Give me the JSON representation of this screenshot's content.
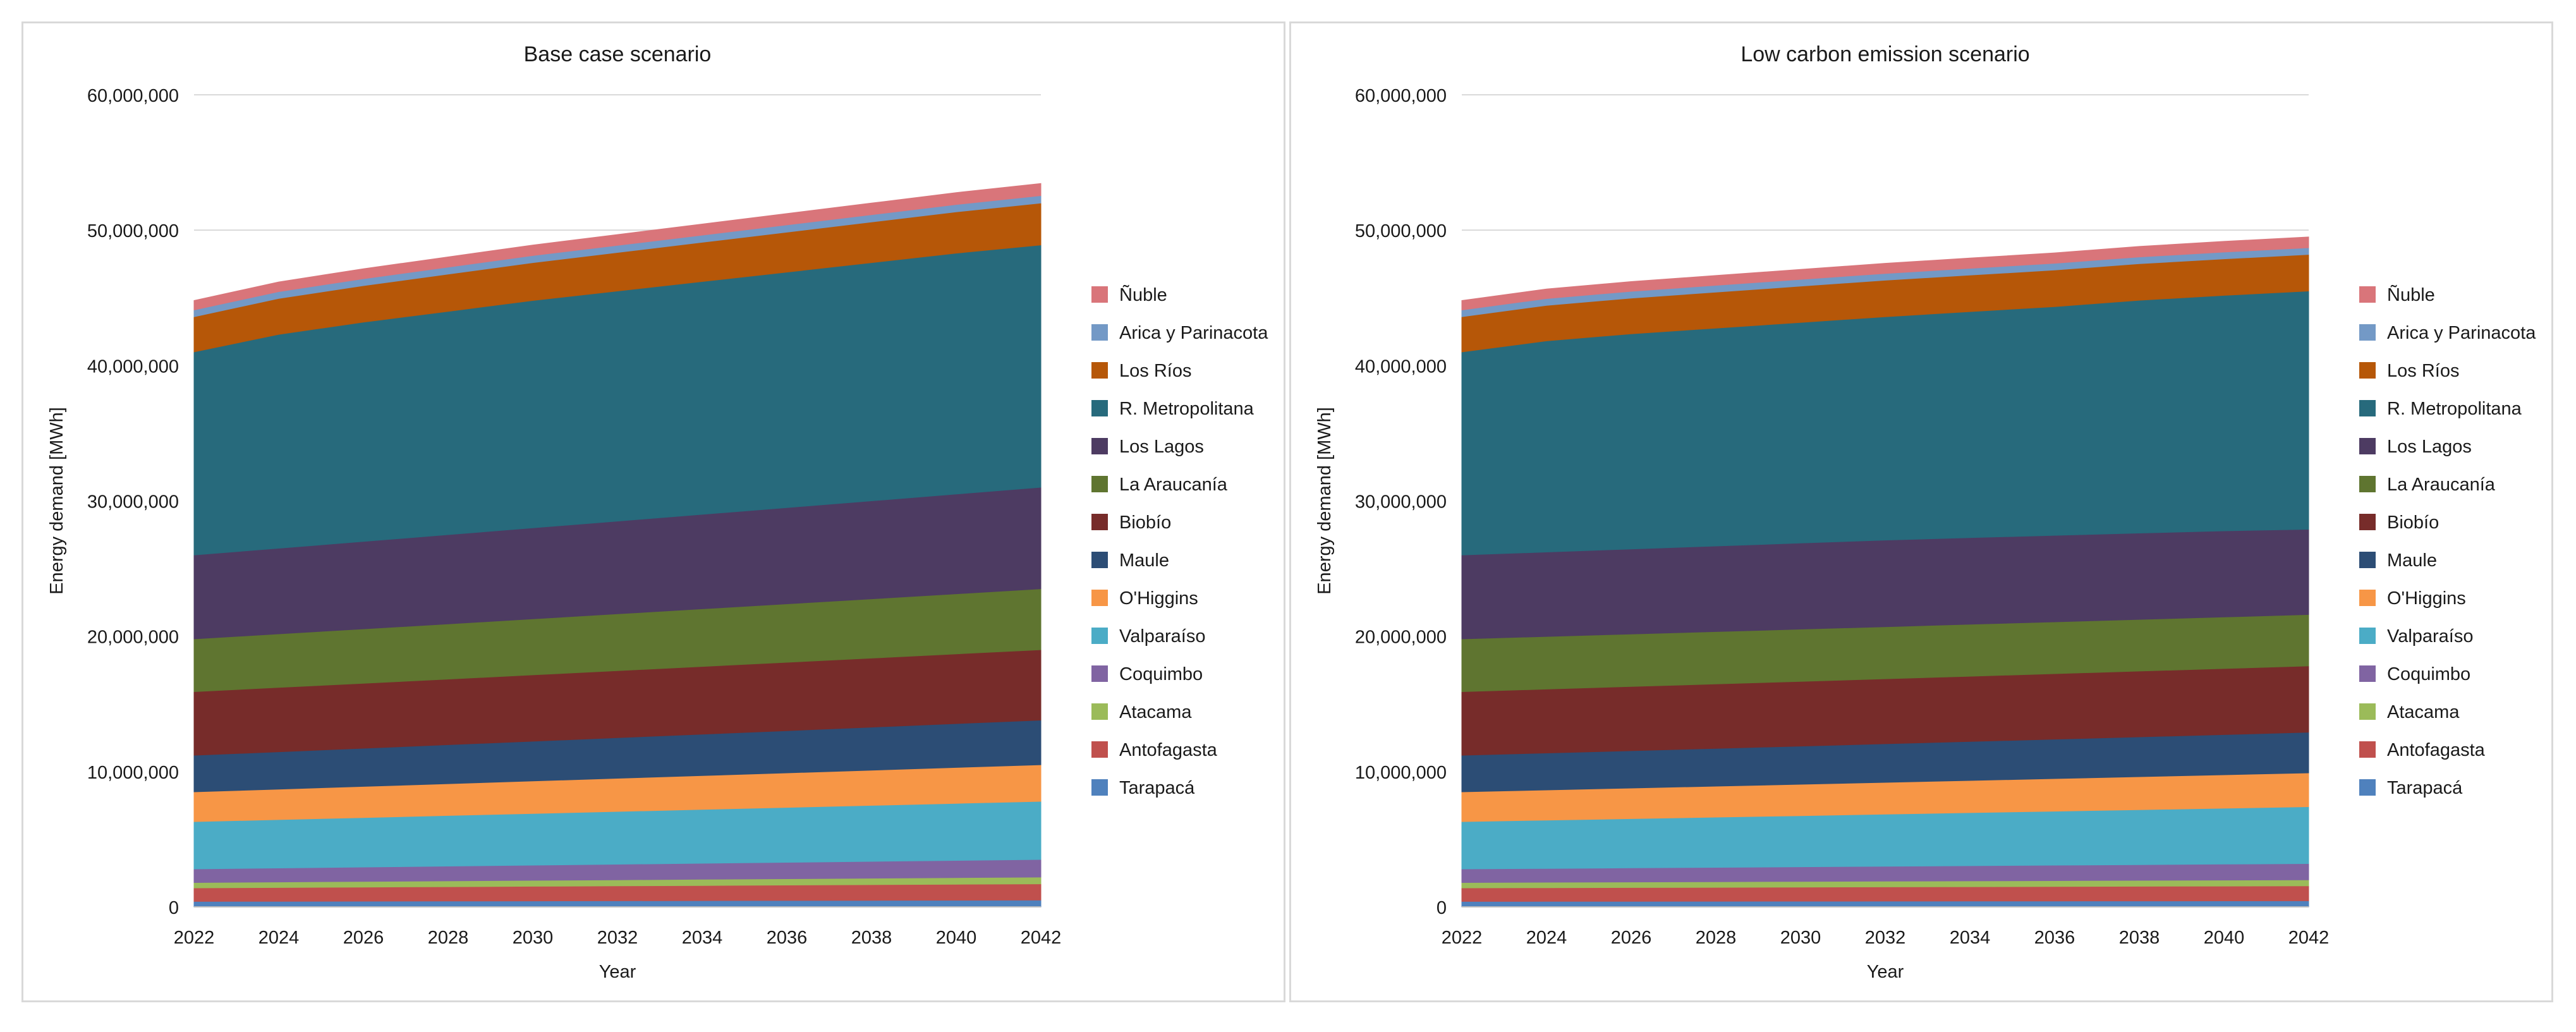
{
  "chart_data": [
    {
      "type": "area",
      "stacked": true,
      "title": "Base case scenario",
      "xlabel": "Year",
      "ylabel": "Energy demand [MWh]",
      "ylim": [
        0,
        60000000
      ],
      "yticks": [
        0,
        10000000,
        20000000,
        30000000,
        40000000,
        50000000,
        60000000
      ],
      "ytick_labels": [
        "0",
        "10,000,000",
        "20,000,000",
        "30,000,000",
        "40,000,000",
        "50,000,000",
        "60,000,000"
      ],
      "x": [
        2022,
        2024,
        2026,
        2028,
        2030,
        2032,
        2034,
        2036,
        2038,
        2040,
        2042
      ],
      "xtick_labels": [
        "2022",
        "2024",
        "2026",
        "2028",
        "2030",
        "2032",
        "2034",
        "2036",
        "2038",
        "2040",
        "2042"
      ],
      "grid": true,
      "legend_position": "right",
      "series": [
        {
          "name": "Tarapacá",
          "color": "#4f81bd",
          "values": [
            400000,
            410000,
            420000,
            430000,
            440000,
            450000,
            460000,
            470000,
            480000,
            490000,
            500000
          ]
        },
        {
          "name": "Antofagasta",
          "color": "#c0504d",
          "values": [
            1000000,
            1020000,
            1040000,
            1060000,
            1080000,
            1100000,
            1120000,
            1140000,
            1160000,
            1180000,
            1200000
          ]
        },
        {
          "name": "Atacama",
          "color": "#9bbb59",
          "values": [
            400000,
            410000,
            420000,
            430000,
            440000,
            450000,
            460000,
            470000,
            480000,
            490000,
            500000
          ]
        },
        {
          "name": "Coquimbo",
          "color": "#8064a2",
          "values": [
            1000000,
            1030000,
            1060000,
            1090000,
            1120000,
            1150000,
            1180000,
            1210000,
            1240000,
            1270000,
            1300000
          ]
        },
        {
          "name": "Valparaíso",
          "color": "#4bacc6",
          "values": [
            3500000,
            3580000,
            3660000,
            3740000,
            3820000,
            3900000,
            3980000,
            4060000,
            4140000,
            4220000,
            4300000
          ]
        },
        {
          "name": "O'Higgins",
          "color": "#f79646",
          "values": [
            2200000,
            2250000,
            2300000,
            2350000,
            2400000,
            2450000,
            2500000,
            2550000,
            2600000,
            2650000,
            2700000
          ]
        },
        {
          "name": "Maule",
          "color": "#2c4d75",
          "values": [
            2700000,
            2760000,
            2820000,
            2880000,
            2940000,
            3000000,
            3060000,
            3120000,
            3180000,
            3240000,
            3300000
          ]
        },
        {
          "name": "Biobío",
          "color": "#772c2a",
          "values": [
            4700000,
            4750000,
            4800000,
            4850000,
            4900000,
            4950000,
            5000000,
            5050000,
            5100000,
            5150000,
            5200000
          ]
        },
        {
          "name": "La Araucanía",
          "color": "#5f7530",
          "values": [
            3900000,
            3960000,
            4020000,
            4080000,
            4140000,
            4200000,
            4260000,
            4320000,
            4380000,
            4440000,
            4500000
          ]
        },
        {
          "name": "Los Lagos",
          "color": "#4d3b62",
          "values": [
            6200000,
            6330000,
            6460000,
            6590000,
            6720000,
            6850000,
            6980000,
            7110000,
            7240000,
            7370000,
            7500000
          ]
        },
        {
          "name": "R. Metropolitana",
          "color": "#276a7c",
          "values": [
            15000000,
            15800000,
            16200000,
            16500000,
            16800000,
            17000000,
            17200000,
            17400000,
            17600000,
            17800000,
            17900000
          ]
        },
        {
          "name": "Los Ríos",
          "color": "#b65708",
          "values": [
            2600000,
            2650000,
            2700000,
            2750000,
            2800000,
            2850000,
            2900000,
            2950000,
            3000000,
            3050000,
            3100000
          ]
        },
        {
          "name": "Arica y Parinacota",
          "color": "#7399c6",
          "values": [
            500000,
            505000,
            510000,
            515000,
            520000,
            525000,
            530000,
            535000,
            540000,
            545000,
            550000
          ]
        },
        {
          "name": "Ñuble",
          "color": "#d9757a",
          "values": [
            700000,
            720000,
            740000,
            760000,
            780000,
            800000,
            820000,
            840000,
            860000,
            880000,
            900000
          ]
        }
      ]
    },
    {
      "type": "area",
      "stacked": true,
      "title": "Low carbon emission scenario",
      "xlabel": "Year",
      "ylabel": "Energy demand [MWh]",
      "ylim": [
        0,
        60000000
      ],
      "yticks": [
        0,
        10000000,
        20000000,
        30000000,
        40000000,
        50000000,
        60000000
      ],
      "ytick_labels": [
        "0",
        "10,000,000",
        "20,000,000",
        "30,000,000",
        "40,000,000",
        "50,000,000",
        "60,000,000"
      ],
      "x": [
        2022,
        2024,
        2026,
        2028,
        2030,
        2032,
        2034,
        2036,
        2038,
        2040,
        2042
      ],
      "xtick_labels": [
        "2022",
        "2024",
        "2026",
        "2028",
        "2030",
        "2032",
        "2034",
        "2036",
        "2038",
        "2040",
        "2042"
      ],
      "grid": true,
      "legend_position": "right",
      "series": [
        {
          "name": "Tarapacá",
          "color": "#4f81bd",
          "values": [
            400000,
            405000,
            410000,
            415000,
            420000,
            425000,
            430000,
            435000,
            440000,
            445000,
            450000
          ]
        },
        {
          "name": "Antofagasta",
          "color": "#c0504d",
          "values": [
            1000000,
            1010000,
            1020000,
            1030000,
            1040000,
            1050000,
            1060000,
            1070000,
            1080000,
            1090000,
            1100000
          ]
        },
        {
          "name": "Atacama",
          "color": "#9bbb59",
          "values": [
            400000,
            405000,
            410000,
            415000,
            420000,
            425000,
            430000,
            435000,
            440000,
            445000,
            450000
          ]
        },
        {
          "name": "Coquimbo",
          "color": "#8064a2",
          "values": [
            1000000,
            1020000,
            1040000,
            1060000,
            1080000,
            1100000,
            1120000,
            1140000,
            1160000,
            1180000,
            1200000
          ]
        },
        {
          "name": "Valparaíso",
          "color": "#4bacc6",
          "values": [
            3500000,
            3570000,
            3640000,
            3710000,
            3780000,
            3850000,
            3920000,
            3990000,
            4060000,
            4130000,
            4200000
          ]
        },
        {
          "name": "O'Higgins",
          "color": "#f79646",
          "values": [
            2200000,
            2230000,
            2260000,
            2290000,
            2320000,
            2350000,
            2380000,
            2410000,
            2440000,
            2470000,
            2500000
          ]
        },
        {
          "name": "Maule",
          "color": "#2c4d75",
          "values": [
            2700000,
            2730000,
            2760000,
            2790000,
            2820000,
            2850000,
            2880000,
            2910000,
            2940000,
            2970000,
            3000000
          ]
        },
        {
          "name": "Biobío",
          "color": "#772c2a",
          "values": [
            4700000,
            4720000,
            4740000,
            4760000,
            4780000,
            4800000,
            4820000,
            4840000,
            4860000,
            4880000,
            4900000
          ]
        },
        {
          "name": "La Araucanía",
          "color": "#5f7530",
          "values": [
            3900000,
            3890000,
            3880000,
            3870000,
            3860000,
            3850000,
            3840000,
            3830000,
            3820000,
            3810000,
            3800000
          ]
        },
        {
          "name": "Los Lagos",
          "color": "#4d3b62",
          "values": [
            6200000,
            6240000,
            6280000,
            6320000,
            6360000,
            6400000,
            6400000,
            6390000,
            6380000,
            6360000,
            6300000
          ]
        },
        {
          "name": "R. Metropolitana",
          "color": "#276a7c",
          "values": [
            15000000,
            15600000,
            15900000,
            16100000,
            16300000,
            16500000,
            16700000,
            16900000,
            17200000,
            17400000,
            17600000
          ]
        },
        {
          "name": "Los Ríos",
          "color": "#b65708",
          "values": [
            2600000,
            2620000,
            2640000,
            2660000,
            2680000,
            2700000,
            2700000,
            2700000,
            2700000,
            2700000,
            2700000
          ]
        },
        {
          "name": "Arica y Parinacota",
          "color": "#7399c6",
          "values": [
            500000,
            500000,
            500000,
            500000,
            500000,
            500000,
            500000,
            500000,
            500000,
            500000,
            500000
          ]
        },
        {
          "name": "Ñuble",
          "color": "#d9757a",
          "values": [
            700000,
            710000,
            720000,
            730000,
            740000,
            750000,
            760000,
            770000,
            780000,
            790000,
            800000
          ]
        }
      ]
    }
  ]
}
